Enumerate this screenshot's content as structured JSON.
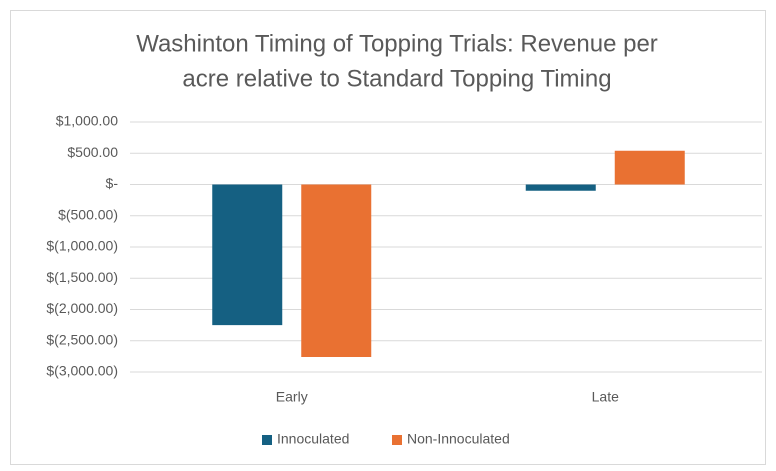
{
  "chart_data": {
    "type": "bar",
    "title": [
      "Washinton Timing of Topping Trials:  Revenue per",
      "acre relative to Standard Topping Timing"
    ],
    "categories": [
      "Early",
      "Late"
    ],
    "series": [
      {
        "name": "Innoculated",
        "color": "#156082",
        "values": [
          -2250,
          -100
        ]
      },
      {
        "name": "Non-Innoculated",
        "color": "#e97132",
        "values": [
          -2760,
          540
        ]
      }
    ],
    "ylim": [
      -3000,
      1000
    ],
    "yticks": [
      {
        "value": -3000,
        "label": "$(3,000.00)"
      },
      {
        "value": -2500,
        "label": "$(2,500.00)"
      },
      {
        "value": -2000,
        "label": "$(2,000.00)"
      },
      {
        "value": -1500,
        "label": "$(1,500.00)"
      },
      {
        "value": -1000,
        "label": "$(1,000.00)"
      },
      {
        "value": -500,
        "label": "$(500.00)"
      },
      {
        "value": 0,
        "label": "$-"
      },
      {
        "value": 500,
        "label": "$500.00"
      },
      {
        "value": 1000,
        "label": "$1,000.00"
      }
    ],
    "grid": true,
    "legend": "bottom"
  }
}
